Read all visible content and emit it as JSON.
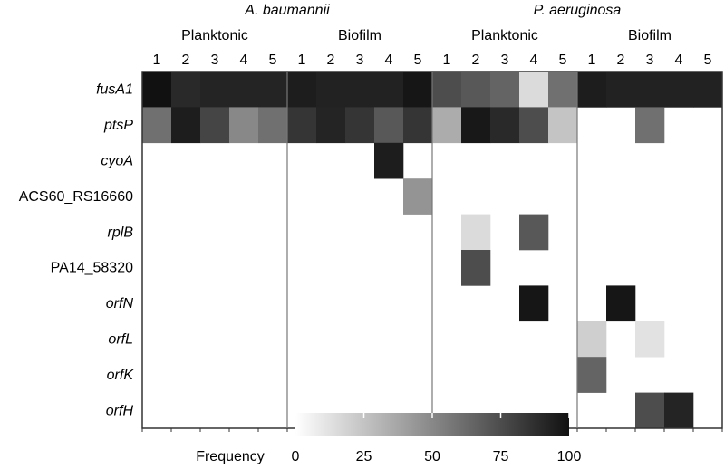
{
  "chart_data": {
    "type": "heatmap",
    "organisms": [
      {
        "name": "A. baumannii",
        "conditions": [
          "Planktonic",
          "Biofilm"
        ]
      },
      {
        "name": "P. aeruginosa",
        "conditions": [
          "Planktonic",
          "Biofilm"
        ]
      }
    ],
    "replicates": [
      "1",
      "2",
      "3",
      "4",
      "5"
    ],
    "genes": [
      {
        "name": "fusA1",
        "italic": true
      },
      {
        "name": "ptsP",
        "italic": true
      },
      {
        "name": "cyoA",
        "italic": true
      },
      {
        "name": "ACS60_RS16660",
        "italic": false
      },
      {
        "name": "rplB",
        "italic": true
      },
      {
        "name": "PA14_58320",
        "italic": false
      },
      {
        "name": "orfN",
        "italic": true
      },
      {
        "name": "orfL",
        "italic": true
      },
      {
        "name": "orfK",
        "italic": true
      },
      {
        "name": "orfH",
        "italic": true
      }
    ],
    "values": [
      [
        100,
        90,
        92,
        92,
        92,
        95,
        93,
        93,
        93,
        98,
        75,
        70,
        65,
        15,
        60,
        95,
        93,
        93,
        93,
        93
      ],
      [
        60,
        95,
        78,
        50,
        60,
        85,
        92,
        85,
        70,
        85,
        35,
        97,
        90,
        75,
        25,
        0,
        0,
        60,
        0,
        0
      ],
      [
        0,
        0,
        0,
        0,
        0,
        0,
        0,
        0,
        95,
        0,
        0,
        0,
        0,
        0,
        0,
        0,
        0,
        0,
        0,
        0
      ],
      [
        0,
        0,
        0,
        0,
        0,
        0,
        0,
        0,
        0,
        45,
        0,
        0,
        0,
        0,
        0,
        0,
        0,
        0,
        0,
        0
      ],
      [
        0,
        0,
        0,
        0,
        0,
        0,
        0,
        0,
        0,
        0,
        0,
        15,
        0,
        70,
        0,
        0,
        0,
        0,
        0,
        0
      ],
      [
        0,
        0,
        0,
        0,
        0,
        0,
        0,
        0,
        0,
        0,
        0,
        75,
        0,
        0,
        0,
        0,
        0,
        0,
        0,
        0
      ],
      [
        0,
        0,
        0,
        0,
        0,
        0,
        0,
        0,
        0,
        0,
        0,
        0,
        0,
        98,
        0,
        0,
        98,
        0,
        0,
        0
      ],
      [
        0,
        0,
        0,
        0,
        0,
        0,
        0,
        0,
        0,
        0,
        0,
        0,
        0,
        0,
        0,
        20,
        0,
        12,
        0,
        0
      ],
      [
        0,
        0,
        0,
        0,
        0,
        0,
        0,
        0,
        0,
        0,
        0,
        0,
        0,
        0,
        0,
        65,
        0,
        0,
        0,
        0
      ],
      [
        0,
        0,
        0,
        0,
        0,
        0,
        0,
        0,
        0,
        0,
        0,
        0,
        0,
        0,
        0,
        0,
        0,
        75,
        92,
        0
      ]
    ],
    "colorscale": {
      "min": 0,
      "max": 100,
      "low_color": "#ffffff",
      "high_color": "#111111"
    },
    "colorbar": {
      "label": "Frequency",
      "ticks": [
        "0",
        "25",
        "50",
        "75",
        "100"
      ]
    }
  }
}
